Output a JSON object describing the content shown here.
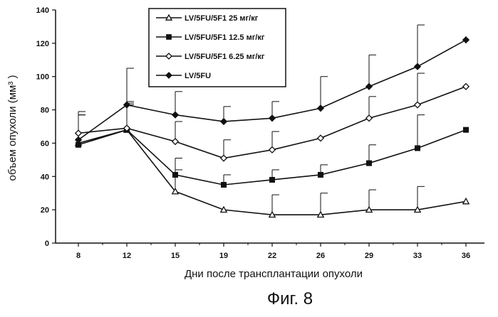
{
  "figure_caption": "Фиг. 8",
  "chart_data": {
    "type": "line",
    "xlabel": "Дни после трансплантации опухоли",
    "ylabel": "объем опухоли (мм³ )",
    "categories": [
      "8",
      "12",
      "15",
      "19",
      "22",
      "26",
      "29",
      "33",
      "36"
    ],
    "ylim": [
      0,
      140
    ],
    "yticks": [
      0,
      20,
      40,
      60,
      80,
      100,
      120,
      140
    ],
    "grid": false,
    "legend_position": "top-center",
    "series": [
      {
        "name": "LV/5FU/5F1 25 мг/кг",
        "marker": "open-triangle",
        "values": [
          60,
          68,
          31,
          20,
          17,
          17,
          20,
          20,
          25
        ],
        "error": [
          17,
          16,
          13,
          0,
          12,
          13,
          12,
          14,
          0
        ]
      },
      {
        "name": "LV/5FU/5F1 12.5 мг/кг",
        "marker": "filled-square",
        "values": [
          59,
          68,
          41,
          35,
          38,
          41,
          48,
          57,
          68
        ],
        "error": [
          18,
          15,
          10,
          6,
          6,
          6,
          11,
          20,
          0
        ]
      },
      {
        "name": "LV/5FU/5F1 6.25 мг/кг",
        "marker": "open-diamond",
        "values": [
          66,
          69,
          61,
          51,
          56,
          63,
          75,
          83,
          94
        ],
        "error": [
          13,
          16,
          12,
          11,
          11,
          0,
          13,
          19,
          0
        ]
      },
      {
        "name": "LV/5FU",
        "marker": "filled-diamond",
        "values": [
          62,
          83,
          77,
          73,
          75,
          81,
          94,
          106,
          122
        ],
        "error": [
          15,
          22,
          14,
          9,
          10,
          19,
          19,
          25,
          0
        ]
      }
    ]
  }
}
